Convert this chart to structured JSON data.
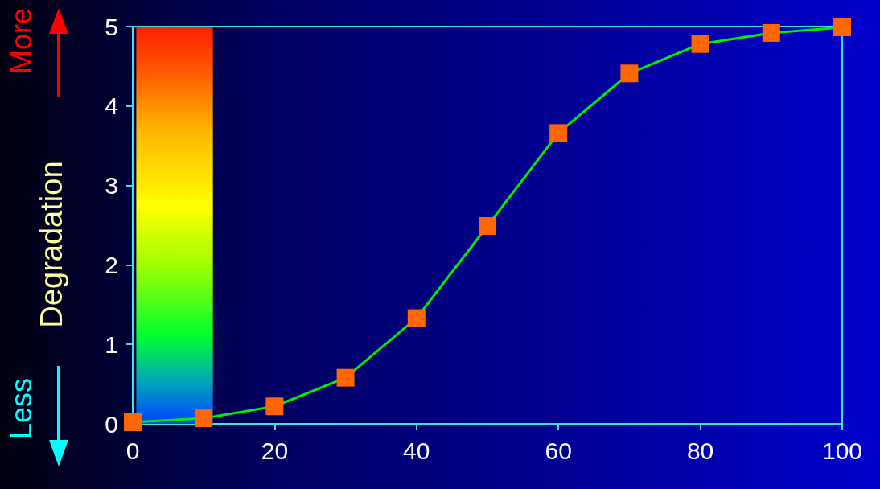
{
  "chart_data": {
    "type": "line",
    "ylabel": "Degradation",
    "annotations": [
      "More",
      "Less"
    ],
    "x": [
      0,
      10,
      20,
      30,
      40,
      50,
      60,
      70,
      80,
      90,
      100
    ],
    "series": [
      {
        "color": "#00ee00",
        "values": [
          0.02,
          0.07,
          0.22,
          0.58,
          1.33,
          2.49,
          3.66,
          4.41,
          4.78,
          4.92,
          4.99
        ]
      }
    ],
    "marker": "square",
    "line_style": "solid",
    "xlim": [
      0,
      100
    ],
    "xticks": [
      0,
      20,
      40,
      60,
      80,
      100
    ],
    "ylim": [
      0,
      5
    ],
    "yticks": [
      0,
      1,
      2,
      3,
      4,
      5
    ],
    "bands": [
      {
        "axis": "x",
        "from": 0.5,
        "to": 11.3
      }
    ],
    "grid": false
  }
}
